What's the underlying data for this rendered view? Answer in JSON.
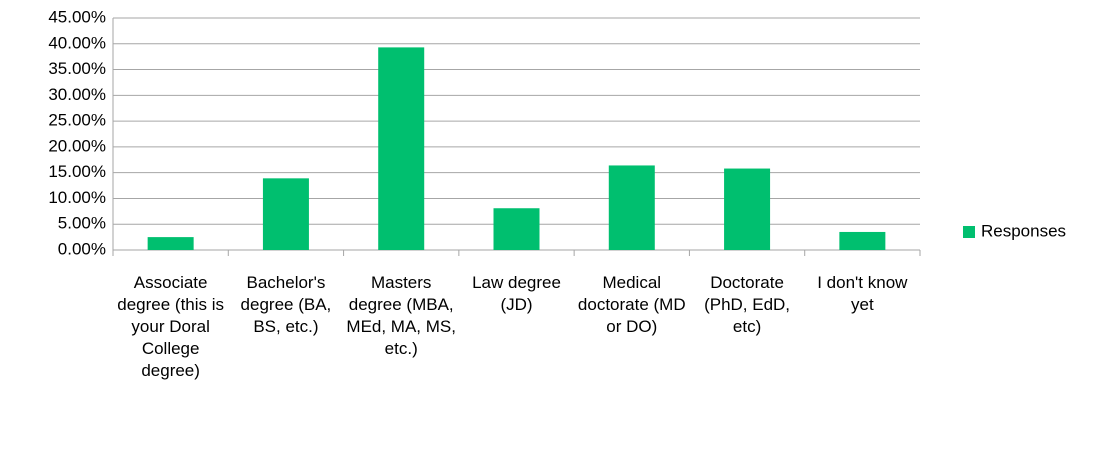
{
  "chart_data": {
    "type": "bar",
    "categories": [
      "Associate degree (this is your Doral College degree)",
      "Bachelor's degree (BA, BS, etc.)",
      "Masters degree (MBA, MEd, MA, MS, etc.)",
      "Law degree (JD)",
      "Medical doctorate (MD or DO)",
      "Doctorate (PhD, EdD, etc)",
      "I don't know yet"
    ],
    "series": [
      {
        "name": "Responses",
        "color": "#00bf6f",
        "values": [
          2.5,
          13.9,
          39.3,
          8.1,
          16.4,
          15.8,
          3.5
        ]
      }
    ],
    "ylim": [
      0,
      45
    ],
    "yticks": [
      {
        "value": 0,
        "label": "0.00%"
      },
      {
        "value": 5,
        "label": "5.00%"
      },
      {
        "value": 10,
        "label": "10.00%"
      },
      {
        "value": 15,
        "label": "15.00%"
      },
      {
        "value": 20,
        "label": "20.00%"
      },
      {
        "value": 25,
        "label": "25.00%"
      },
      {
        "value": 30,
        "label": "30.00%"
      },
      {
        "value": 35,
        "label": "35.00%"
      },
      {
        "value": 40,
        "label": "40.00%"
      },
      {
        "value": 45,
        "label": "45.00%"
      }
    ],
    "grid": true,
    "legend": "right"
  }
}
